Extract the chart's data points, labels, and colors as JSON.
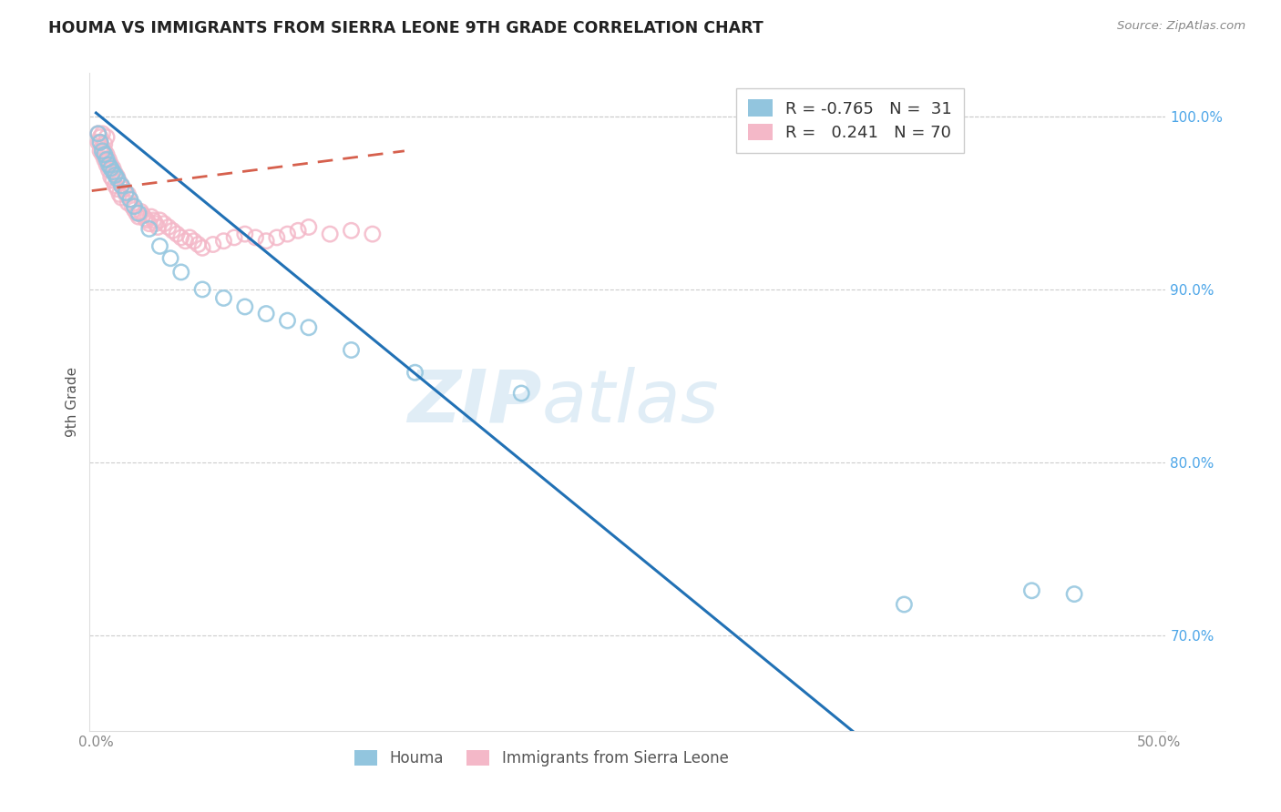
{
  "title": "HOUMA VS IMMIGRANTS FROM SIERRA LEONE 9TH GRADE CORRELATION CHART",
  "source": "Source: ZipAtlas.com",
  "ylabel": "9th Grade",
  "xlim": [
    -0.003,
    0.503
  ],
  "ylim": [
    0.645,
    1.025
  ],
  "right_yticks": [
    0.7,
    0.8,
    0.9,
    1.0
  ],
  "right_yticklabels": [
    "70.0%",
    "80.0%",
    "90.0%",
    "100.0%"
  ],
  "xticks": [
    0.0,
    0.1,
    0.2,
    0.3,
    0.4,
    0.5
  ],
  "xticklabels": [
    "0.0%",
    "",
    "",
    "",
    "",
    "50.0%"
  ],
  "legend_r_blue": "-0.765",
  "legend_n_blue": "31",
  "legend_r_pink": "0.241",
  "legend_n_pink": "70",
  "blue_color": "#92c5de",
  "pink_color": "#f4b8c8",
  "blue_line_color": "#2171b5",
  "pink_line_color": "#d6604d",
  "watermark_zip": "ZIP",
  "watermark_atlas": "atlas",
  "houma_label": "Houma",
  "sierra_leone_label": "Immigrants from Sierra Leone",
  "blue_x": [
    0.001,
    0.002,
    0.003,
    0.004,
    0.005,
    0.006,
    0.007,
    0.008,
    0.009,
    0.01,
    0.012,
    0.014,
    0.016,
    0.018,
    0.02,
    0.025,
    0.03,
    0.035,
    0.04,
    0.05,
    0.06,
    0.07,
    0.08,
    0.09,
    0.1,
    0.12,
    0.15,
    0.2,
    0.38,
    0.44,
    0.46
  ],
  "blue_y": [
    0.99,
    0.985,
    0.98,
    0.978,
    0.975,
    0.972,
    0.97,
    0.968,
    0.966,
    0.964,
    0.96,
    0.956,
    0.952,
    0.948,
    0.944,
    0.935,
    0.925,
    0.918,
    0.91,
    0.9,
    0.895,
    0.89,
    0.886,
    0.882,
    0.878,
    0.865,
    0.852,
    0.84,
    0.718,
    0.726,
    0.724
  ],
  "pink_x": [
    0.001,
    0.001,
    0.002,
    0.002,
    0.002,
    0.003,
    0.003,
    0.003,
    0.004,
    0.004,
    0.004,
    0.005,
    0.005,
    0.005,
    0.006,
    0.006,
    0.007,
    0.007,
    0.008,
    0.008,
    0.009,
    0.009,
    0.01,
    0.01,
    0.011,
    0.011,
    0.012,
    0.012,
    0.013,
    0.014,
    0.015,
    0.015,
    0.016,
    0.017,
    0.018,
    0.019,
    0.02,
    0.021,
    0.022,
    0.023,
    0.024,
    0.025,
    0.026,
    0.027,
    0.028,
    0.029,
    0.03,
    0.032,
    0.034,
    0.036,
    0.038,
    0.04,
    0.042,
    0.044,
    0.046,
    0.048,
    0.05,
    0.055,
    0.06,
    0.065,
    0.07,
    0.075,
    0.08,
    0.085,
    0.09,
    0.095,
    0.1,
    0.11,
    0.12,
    0.13
  ],
  "pink_y": [
    0.99,
    0.985,
    0.985,
    0.98,
    0.988,
    0.982,
    0.978,
    0.99,
    0.98,
    0.975,
    0.984,
    0.978,
    0.972,
    0.988,
    0.975,
    0.969,
    0.972,
    0.965,
    0.97,
    0.963,
    0.967,
    0.96,
    0.965,
    0.958,
    0.962,
    0.955,
    0.96,
    0.953,
    0.958,
    0.955,
    0.955,
    0.95,
    0.952,
    0.948,
    0.946,
    0.944,
    0.942,
    0.945,
    0.943,
    0.941,
    0.94,
    0.938,
    0.942,
    0.94,
    0.938,
    0.936,
    0.94,
    0.938,
    0.936,
    0.934,
    0.932,
    0.93,
    0.928,
    0.93,
    0.928,
    0.926,
    0.924,
    0.926,
    0.928,
    0.93,
    0.932,
    0.93,
    0.928,
    0.93,
    0.932,
    0.934,
    0.936,
    0.932,
    0.934,
    0.932
  ],
  "grid_color": "#cccccc",
  "background_color": "#ffffff",
  "tick_color": "#888888",
  "right_tick_color": "#4da6e8"
}
